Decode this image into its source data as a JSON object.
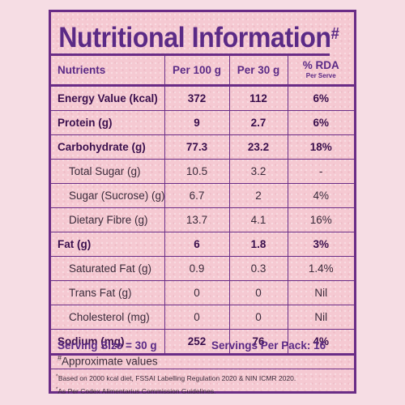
{
  "title": {
    "text": "Nutritional Information",
    "mark": "#"
  },
  "headers": {
    "nutrients": "Nutrients",
    "per100": "Per 100 g",
    "per30": "Per 30 g",
    "rda": "% RDA",
    "rda_sub": "Per Serve"
  },
  "rows": [
    {
      "name": "Energy Value (kcal)",
      "per100": "372",
      "per30": "112",
      "rda": "6%"
    },
    {
      "name": "Protein (g)",
      "per100": "9",
      "per30": "2.7",
      "rda": "6%"
    },
    {
      "name": "Carbohydrate (g)",
      "per100": "77.3",
      "per30": "23.2",
      "rda": "18%"
    },
    {
      "name": "Total Sugar (g)",
      "per100": "10.5",
      "per30": "3.2",
      "rda": "-"
    },
    {
      "name": "Sugar (Sucrose) (g)",
      "per100": "6.7",
      "per30": "2",
      "rda": "4%"
    },
    {
      "name": "Dietary Fibre (g)",
      "per100": "13.7",
      "per30": "4.1",
      "rda": "16%"
    },
    {
      "name": "Fat (g)",
      "per100": "6",
      "per30": "1.8",
      "rda": "3%"
    },
    {
      "name": "Saturated Fat (g)",
      "per100": "0.9",
      "per30": "0.3",
      "rda": "1.4%"
    },
    {
      "name": "Trans Fat (g)",
      "per100": "0",
      "per30": "0",
      "rda": "Nil"
    },
    {
      "name": "Cholesterol (mg)",
      "per100": "0",
      "per30": "0",
      "rda": "Nil"
    },
    {
      "name": "Sodium (mg)",
      "per100": "252",
      "per30": "76",
      "rda": "4%"
    }
  ],
  "footer": {
    "serving_size": "Serving Size = 30 g",
    "servings_per_pack": "Servings Per Pack: 16",
    "approx_mark": "#",
    "approx": "Approximate values",
    "note1_mark": "^",
    "note1": "Based on 2000 kcal diet, FSSAI Labelling Regulation 2020 & NIN ICMR 2020.",
    "note2_mark": "*",
    "note2": "As Per Codex Alimentarius Commission Guidelines."
  },
  "colors": {
    "accent": "#6a2c86",
    "panel": "#f5c9d2",
    "background": "#f6dde4"
  }
}
